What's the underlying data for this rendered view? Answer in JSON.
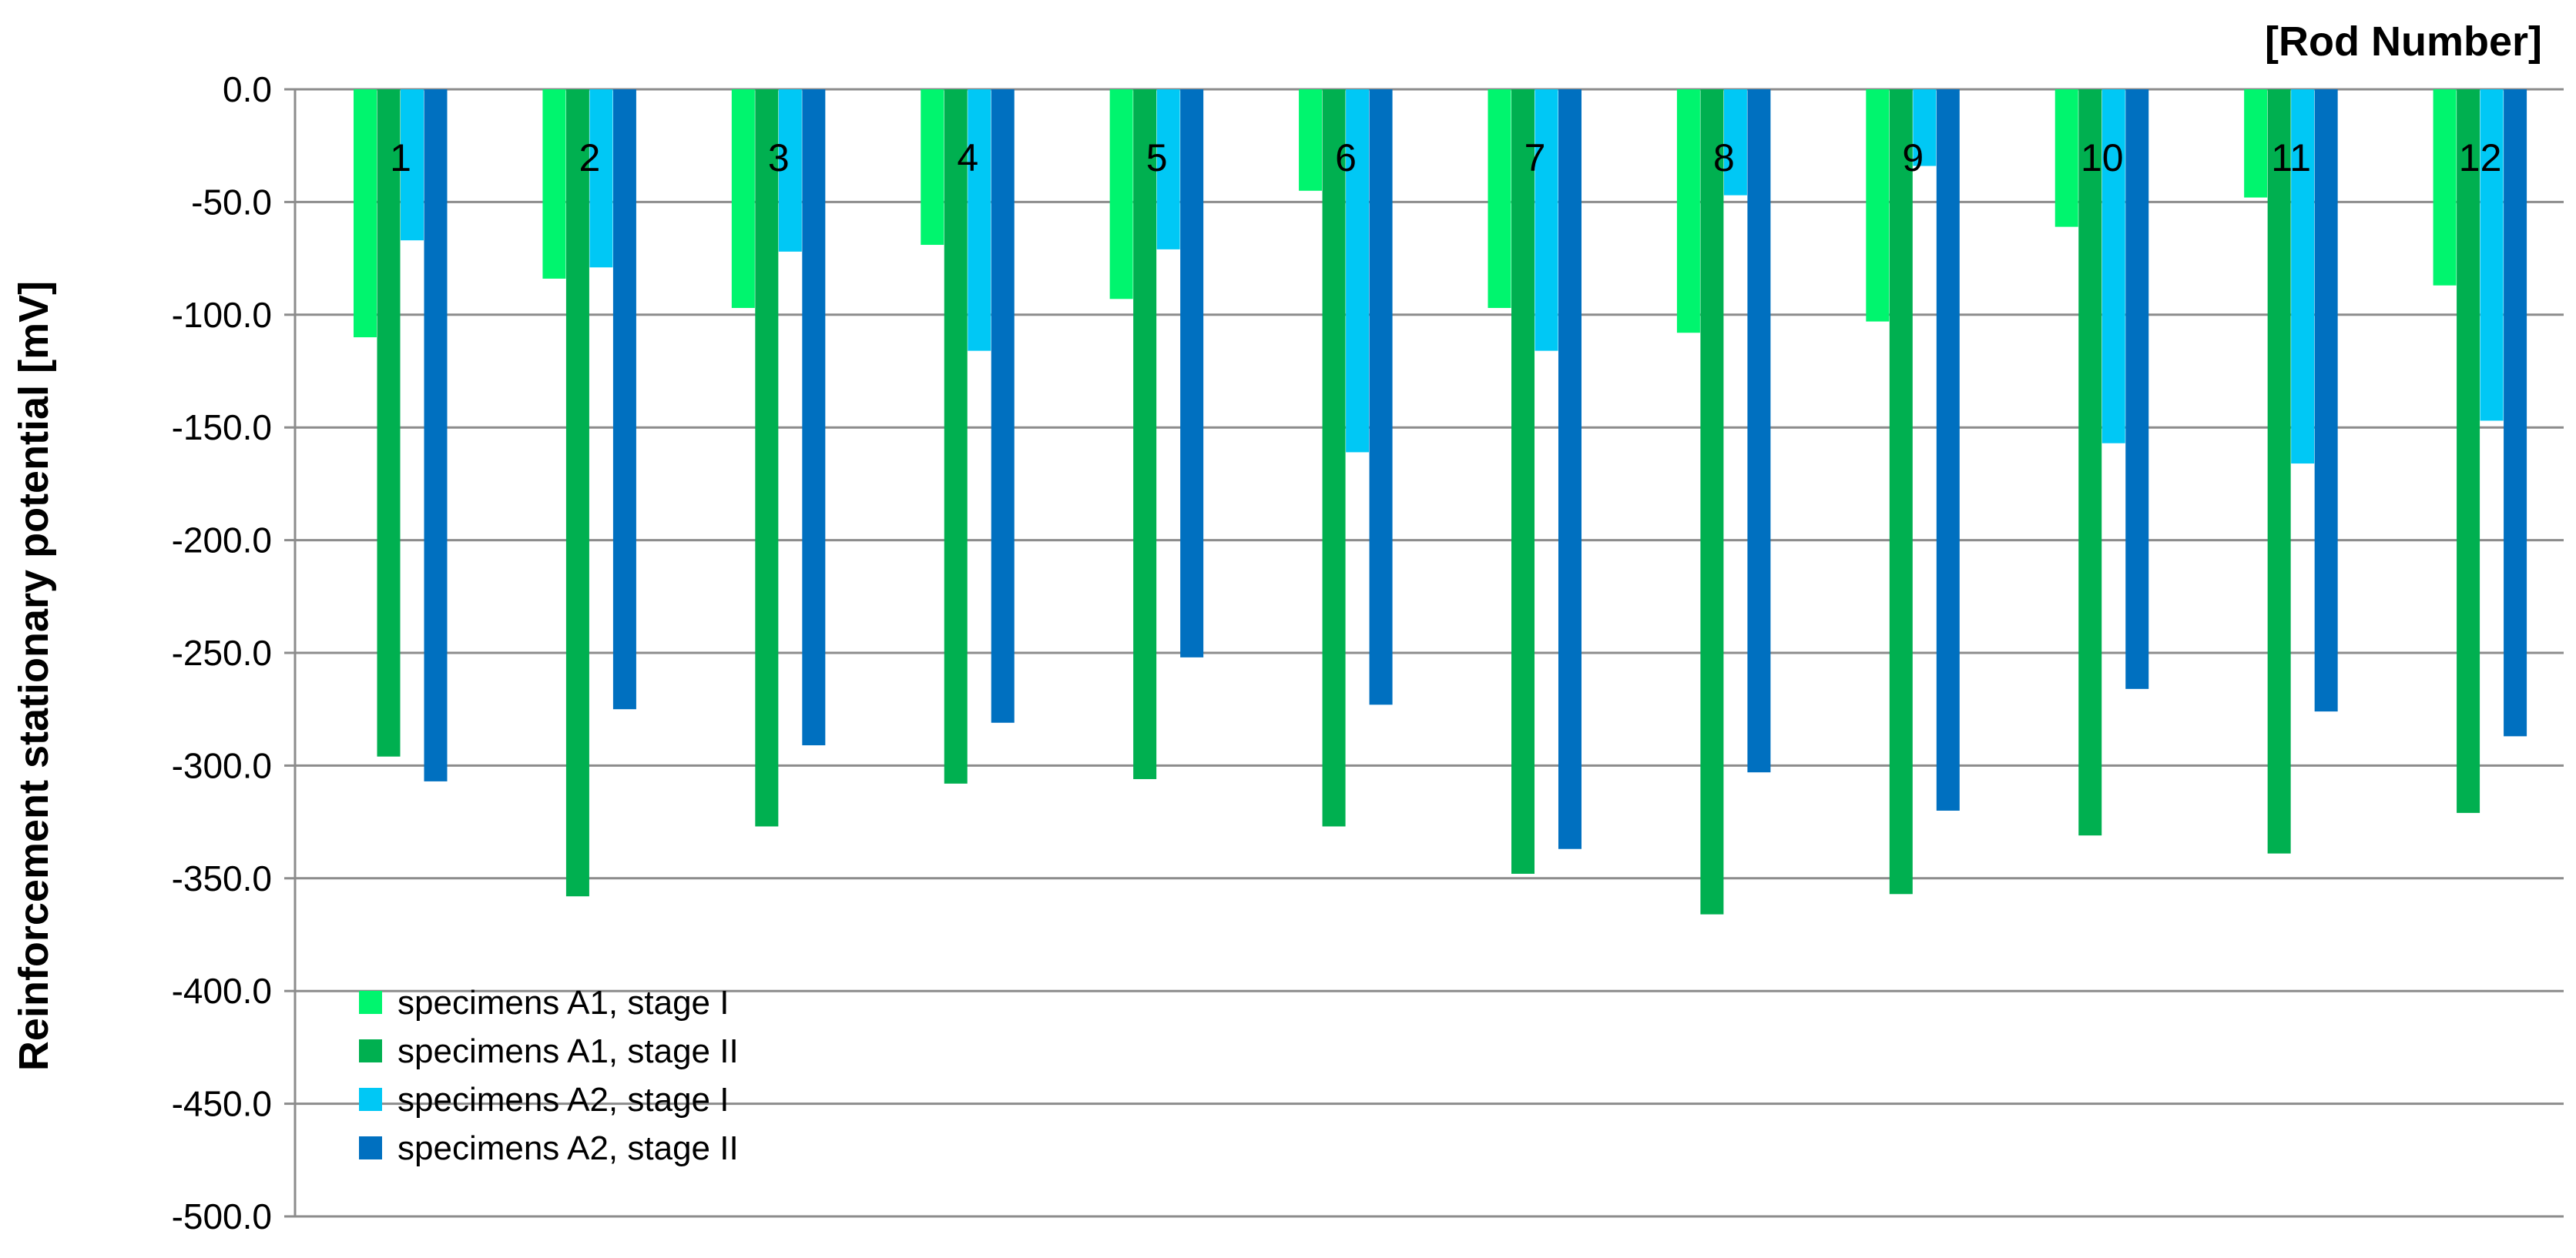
{
  "chart_data": {
    "type": "bar",
    "title": "",
    "xlabel": "[Rod Number]",
    "ylabel": "Reinforcement stationary potential [mV]",
    "ylim": [
      -500,
      0
    ],
    "yticks": [
      0,
      -50,
      -100,
      -150,
      -200,
      -250,
      -300,
      -350,
      -400,
      -450,
      -500
    ],
    "ytick_labels": [
      "0.0",
      "-50.0",
      "-100.0",
      "-150.0",
      "-200.0",
      "-250.0",
      "-300.0",
      "-350.0",
      "-400.0",
      "-450.0",
      "-500.0"
    ],
    "grid": true,
    "legend_position": "bottom-left",
    "categories": [
      "1",
      "2",
      "3",
      "4",
      "5",
      "6",
      "7",
      "8",
      "9",
      "10",
      "11",
      "12"
    ],
    "series": [
      {
        "name": "specimens A1, stage I",
        "color": "#00F56E",
        "values": [
          -110,
          -84,
          -97,
          -69,
          -93,
          -45,
          -97,
          -108,
          -103,
          -61,
          -48,
          -87
        ]
      },
      {
        "name": "specimens A1, stage II",
        "color": "#00B050",
        "values": [
          -296,
          -358,
          -327,
          -308,
          -306,
          -327,
          -348,
          -366,
          -357,
          -331,
          -339,
          -321
        ]
      },
      {
        "name": "specimens A2, stage I",
        "color": "#00C8F5",
        "values": [
          -67,
          -79,
          -72,
          -116,
          -71,
          -161,
          -116,
          -47,
          -34,
          -157,
          -166,
          -147
        ]
      },
      {
        "name": "specimens A2, stage II",
        "color": "#0070C0",
        "values": [
          -307,
          -275,
          -291,
          -281,
          -252,
          -273,
          -337,
          -303,
          -320,
          -266,
          -276,
          -287
        ]
      }
    ]
  }
}
